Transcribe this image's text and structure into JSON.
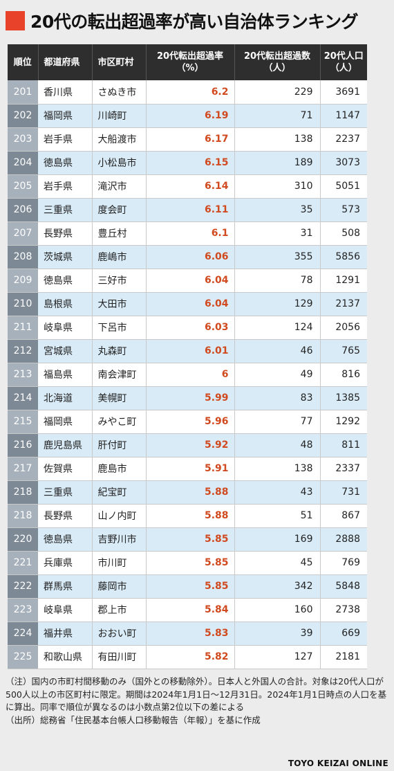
{
  "title": "20代の転出超過率が高い自治体ランキング",
  "colors": {
    "accent": "#e8432a",
    "header_bg": "#2e2e2e",
    "rate_text": "#d1491f",
    "row_alt": "#d9ebf7",
    "rank_odd": "#a7b1bc",
    "rank_even": "#7e8996"
  },
  "table": {
    "headers": {
      "rank": "順位",
      "pref": "都道府県",
      "city": "市区町村",
      "rate_line1": "20代転出超過率",
      "rate_line2": "（%）",
      "excess_line1": "20代転出超過数",
      "excess_line2": "（人）",
      "pop_line1": "20代人口",
      "pop_line2": "（人）"
    },
    "rows": [
      {
        "rank": "201",
        "pref": "香川県",
        "city": "さぬき市",
        "rate": "6.2",
        "excess": "229",
        "pop": "3691"
      },
      {
        "rank": "202",
        "pref": "福岡県",
        "city": "川崎町",
        "rate": "6.19",
        "excess": "71",
        "pop": "1147"
      },
      {
        "rank": "203",
        "pref": "岩手県",
        "city": "大船渡市",
        "rate": "6.17",
        "excess": "138",
        "pop": "2237"
      },
      {
        "rank": "204",
        "pref": "徳島県",
        "city": "小松島市",
        "rate": "6.15",
        "excess": "189",
        "pop": "3073"
      },
      {
        "rank": "205",
        "pref": "岩手県",
        "city": "滝沢市",
        "rate": "6.14",
        "excess": "310",
        "pop": "5051"
      },
      {
        "rank": "206",
        "pref": "三重県",
        "city": "度会町",
        "rate": "6.11",
        "excess": "35",
        "pop": "573"
      },
      {
        "rank": "207",
        "pref": "長野県",
        "city": "豊丘村",
        "rate": "6.1",
        "excess": "31",
        "pop": "508"
      },
      {
        "rank": "208",
        "pref": "茨城県",
        "city": "鹿嶋市",
        "rate": "6.06",
        "excess": "355",
        "pop": "5856"
      },
      {
        "rank": "209",
        "pref": "徳島県",
        "city": "三好市",
        "rate": "6.04",
        "excess": "78",
        "pop": "1291"
      },
      {
        "rank": "210",
        "pref": "島根県",
        "city": "大田市",
        "rate": "6.04",
        "excess": "129",
        "pop": "2137"
      },
      {
        "rank": "211",
        "pref": "岐阜県",
        "city": "下呂市",
        "rate": "6.03",
        "excess": "124",
        "pop": "2056"
      },
      {
        "rank": "212",
        "pref": "宮城県",
        "city": "丸森町",
        "rate": "6.01",
        "excess": "46",
        "pop": "765"
      },
      {
        "rank": "213",
        "pref": "福島県",
        "city": "南会津町",
        "rate": "6",
        "excess": "49",
        "pop": "816"
      },
      {
        "rank": "214",
        "pref": "北海道",
        "city": "美幌町",
        "rate": "5.99",
        "excess": "83",
        "pop": "1385"
      },
      {
        "rank": "215",
        "pref": "福岡県",
        "city": "みやこ町",
        "rate": "5.96",
        "excess": "77",
        "pop": "1292"
      },
      {
        "rank": "216",
        "pref": "鹿児島県",
        "city": "肝付町",
        "rate": "5.92",
        "excess": "48",
        "pop": "811"
      },
      {
        "rank": "217",
        "pref": "佐賀県",
        "city": "鹿島市",
        "rate": "5.91",
        "excess": "138",
        "pop": "2337"
      },
      {
        "rank": "218",
        "pref": "三重県",
        "city": "紀宝町",
        "rate": "5.88",
        "excess": "43",
        "pop": "731"
      },
      {
        "rank": "218",
        "pref": "長野県",
        "city": "山ノ内町",
        "rate": "5.88",
        "excess": "51",
        "pop": "867"
      },
      {
        "rank": "220",
        "pref": "徳島県",
        "city": "吉野川市",
        "rate": "5.85",
        "excess": "169",
        "pop": "2888"
      },
      {
        "rank": "221",
        "pref": "兵庫県",
        "city": "市川町",
        "rate": "5.85",
        "excess": "45",
        "pop": "769"
      },
      {
        "rank": "222",
        "pref": "群馬県",
        "city": "藤岡市",
        "rate": "5.85",
        "excess": "342",
        "pop": "5848"
      },
      {
        "rank": "223",
        "pref": "岐阜県",
        "city": "郡上市",
        "rate": "5.84",
        "excess": "160",
        "pop": "2738"
      },
      {
        "rank": "224",
        "pref": "福井県",
        "city": "おおい町",
        "rate": "5.83",
        "excess": "39",
        "pop": "669"
      },
      {
        "rank": "225",
        "pref": "和歌山県",
        "city": "有田川町",
        "rate": "5.82",
        "excess": "127",
        "pop": "2181"
      }
    ]
  },
  "notes": {
    "note": "（注）国内の市町村間移動のみ（国外との移動除外）。日本人と外国人の合計。対象は20代人口が500人以上の市区町村に限定。期間は2024年1月1日〜12月31日。2024年1月1日時点の人口を基に算出。同率で順位が異なるのは小数点第2位以下の差による",
    "source": "（出所）総務省「住民基本台帳人口移動報告（年報）」を基に作成"
  },
  "brand": "TOYO KEIZAI ONLINE"
}
